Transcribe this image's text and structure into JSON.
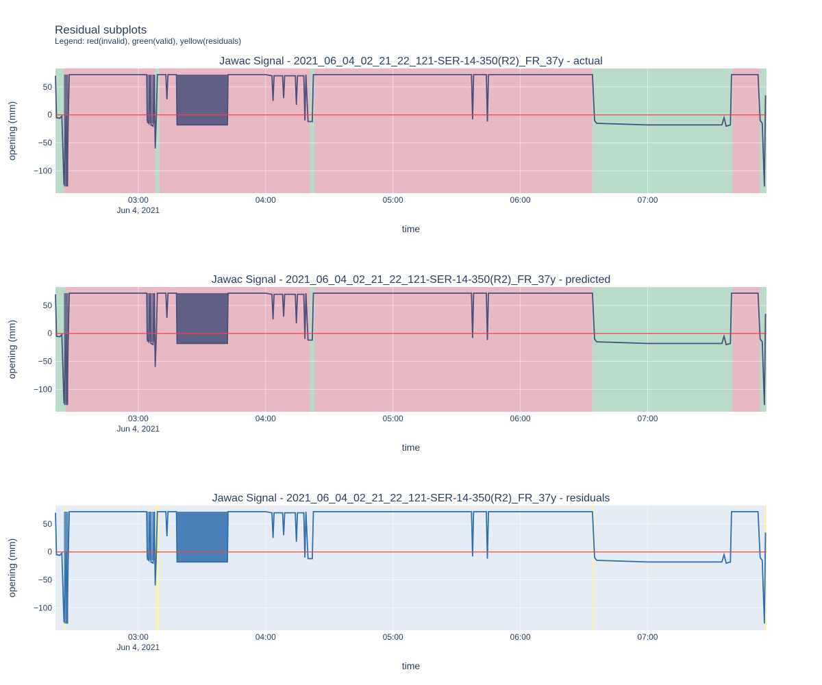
{
  "figure": {
    "title": "Residual subplots",
    "subtitle": "Legend: red(invalid), green(valid), yellow(residuals)"
  },
  "colors": {
    "invalid_band": "#e8b4bf",
    "valid_band": "#b4d9c4",
    "residual_band": "#f7f3b6",
    "plot_bg": "#e5ecf6",
    "zero_line": "#ef4444",
    "trace_actual": "#4a4f7c",
    "trace_residual": "#2e6fad",
    "grid": "#ffffff",
    "text": "#2a3f5f"
  },
  "chart_data": [
    {
      "type": "line",
      "title": "Jawac Signal - 2021_06_04_02_21_22_121-SER-14-350(R2)_FR_37y - actual",
      "xlabel": "time",
      "ylabel": "opening (mm)",
      "xlim": [
        "2021-06-04 02:21",
        "2021-06-04 07:56"
      ],
      "ylim": [
        -140,
        83
      ],
      "x_ticks": [
        "03:00",
        "04:00",
        "05:00",
        "06:00",
        "07:00"
      ],
      "x_date_label": "Jun 4, 2021",
      "y_ticks": [
        50,
        0,
        -50,
        -100
      ],
      "zero_line": 0,
      "bands": [
        {
          "start": "02:21",
          "end": "02:25",
          "label": "valid"
        },
        {
          "start": "02:25",
          "end": "03:08",
          "label": "invalid"
        },
        {
          "start": "03:08",
          "end": "03:10",
          "label": "valid"
        },
        {
          "start": "03:10",
          "end": "04:21",
          "label": "invalid"
        },
        {
          "start": "04:21",
          "end": "04:23",
          "label": "valid"
        },
        {
          "start": "04:23",
          "end": "06:34",
          "label": "invalid"
        },
        {
          "start": "06:34",
          "end": "07:40",
          "label": "valid"
        },
        {
          "start": "07:40",
          "end": "07:53",
          "label": "invalid"
        },
        {
          "start": "07:53",
          "end": "07:56",
          "label": "valid"
        }
      ],
      "signal": [
        [
          "02:21",
          70
        ],
        [
          "02:21.5",
          -5
        ],
        [
          "02:23",
          -6
        ],
        [
          "02:24",
          -2
        ],
        [
          "02:25",
          -125
        ],
        [
          "02:26",
          0
        ],
        [
          "02:26.5",
          -128
        ],
        [
          "02:27",
          -10
        ],
        [
          "02:27.5",
          72
        ],
        [
          "03:04",
          72
        ],
        [
          "03:04.2",
          -10
        ],
        [
          "03:05",
          -15
        ],
        [
          "03:05.5",
          72
        ],
        [
          "03:06",
          -18
        ],
        [
          "03:07",
          -20
        ],
        [
          "03:07.5",
          72
        ],
        [
          "03:08",
          -60
        ],
        [
          "03:08.5",
          -5
        ],
        [
          "03:09",
          72
        ],
        [
          "03:13",
          72
        ],
        [
          "03:13.5",
          28
        ],
        [
          "03:14",
          72
        ],
        [
          "03:18",
          72
        ],
        [
          "03:18.3",
          -18
        ],
        [
          "03:42",
          -18
        ],
        [
          "03:42.3",
          72
        ],
        [
          "04:00",
          72
        ],
        [
          "04:03",
          70
        ],
        [
          "04:03.5",
          25
        ],
        [
          "04:04",
          70
        ],
        [
          "04:08",
          70
        ],
        [
          "04:08.5",
          30
        ],
        [
          "04:09",
          70
        ],
        [
          "04:14",
          70
        ],
        [
          "04:14.5",
          18
        ],
        [
          "04:15",
          70
        ],
        [
          "04:18",
          70
        ],
        [
          "04:18.5",
          -10
        ],
        [
          "04:19",
          72
        ],
        [
          "04:20",
          -12
        ],
        [
          "04:22",
          -12
        ],
        [
          "04:22.5",
          72
        ],
        [
          "05:37",
          72
        ],
        [
          "05:37.5",
          -8
        ],
        [
          "05:38",
          72
        ],
        [
          "05:44",
          72
        ],
        [
          "05:44.5",
          -12
        ],
        [
          "05:45",
          72
        ],
        [
          "06:34",
          72
        ],
        [
          "06:35",
          -10
        ],
        [
          "06:36",
          -15
        ],
        [
          "07:00",
          -18
        ],
        [
          "07:25",
          -18
        ],
        [
          "07:35",
          -18
        ],
        [
          "07:36",
          -5
        ],
        [
          "07:37",
          -20
        ],
        [
          "07:39",
          -18
        ],
        [
          "07:39.5",
          72
        ],
        [
          "07:52",
          72
        ],
        [
          "07:53",
          -10
        ],
        [
          "07:54",
          -15
        ],
        [
          "07:55",
          -128
        ],
        [
          "07:55.5",
          35
        ]
      ]
    },
    {
      "type": "line",
      "title": "Jawac Signal - 2021_06_04_02_21_22_121-SER-14-350(R2)_FR_37y - predicted",
      "xlabel": "time",
      "ylabel": "opening (mm)",
      "xlim": [
        "2021-06-04 02:21",
        "2021-06-04 07:56"
      ],
      "ylim": [
        -140,
        83
      ],
      "x_ticks": [
        "03:00",
        "04:00",
        "05:00",
        "06:00",
        "07:00"
      ],
      "x_date_label": "Jun 4, 2021",
      "y_ticks": [
        50,
        0,
        -50,
        -100
      ],
      "zero_line": 0,
      "bands": [
        {
          "start": "02:21",
          "end": "02:26",
          "label": "valid"
        },
        {
          "start": "02:26",
          "end": "04:21",
          "label": "invalid"
        },
        {
          "start": "04:21",
          "end": "04:23",
          "label": "valid"
        },
        {
          "start": "04:23",
          "end": "06:34",
          "label": "invalid"
        },
        {
          "start": "06:34",
          "end": "07:40",
          "label": "valid"
        },
        {
          "start": "07:40",
          "end": "07:53",
          "label": "invalid"
        },
        {
          "start": "07:53",
          "end": "07:56",
          "label": "valid"
        }
      ],
      "signal": "same as actual"
    },
    {
      "type": "line",
      "title": "Jawac Signal - 2021_06_04_02_21_22_121-SER-14-350(R2)_FR_37y - residuals",
      "xlabel": "time",
      "ylabel": "opening (mm)",
      "xlim": [
        "2021-06-04 02:21",
        "2021-06-04 07:56"
      ],
      "ylim": [
        -140,
        83
      ],
      "x_ticks": [
        "03:00",
        "04:00",
        "05:00",
        "06:00",
        "07:00"
      ],
      "x_date_label": "Jun 4, 2021",
      "y_ticks": [
        50,
        0,
        -50,
        -100
      ],
      "zero_line": 0,
      "bands": [
        {
          "start": "02:25",
          "end": "02:26",
          "label": "residual"
        },
        {
          "start": "03:08",
          "end": "03:10",
          "label": "residual"
        },
        {
          "start": "06:34",
          "end": "06:35",
          "label": "residual"
        },
        {
          "start": "07:55",
          "end": "07:56",
          "label": "residual"
        }
      ],
      "signal": "same as actual"
    }
  ]
}
